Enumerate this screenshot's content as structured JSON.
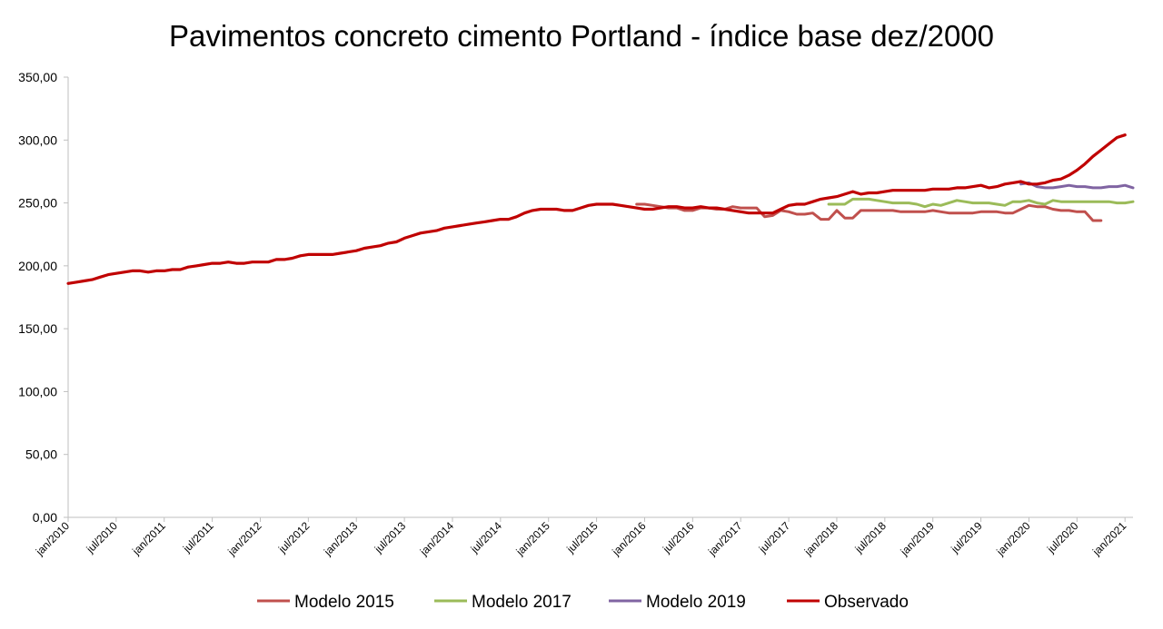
{
  "chart_data": {
    "type": "line",
    "title": "Pavimentos concreto cimento Portland - índice base dez/2000",
    "xlabel": "",
    "ylabel": "",
    "ylim": [
      0,
      350
    ],
    "yticks": [
      "0,00",
      "50,00",
      "100,00",
      "150,00",
      "200,00",
      "250,00",
      "300,00",
      "350,00"
    ],
    "x_tick_labels": [
      "jan/2010",
      "jul/2010",
      "jan/2011",
      "jul/2011",
      "jan/2012",
      "jul/2012",
      "jan/2013",
      "jul/2013",
      "jan/2014",
      "jul/2014",
      "jan/2015",
      "jul/2015",
      "jan/2016",
      "jul/2016",
      "jan/2017",
      "jul/2017",
      "jan/2018",
      "jul/2018",
      "jan/2019",
      "jul/2019",
      "jan/2020",
      "jul/2020",
      "jan/2021"
    ],
    "x_start": "jan/2010",
    "x_end": "fev/2021",
    "grid": false,
    "legend_position": "bottom",
    "series": [
      {
        "name": "Modelo 2015",
        "color": "#c0504d",
        "start": "dez/2015",
        "values": [
          249,
          249,
          248,
          247,
          246,
          246,
          244,
          244,
          246,
          246,
          245,
          245,
          247,
          246,
          246,
          246,
          239,
          240,
          244,
          243,
          241,
          241,
          242,
          237,
          237,
          244,
          238,
          238,
          244,
          244,
          244,
          244,
          244,
          243,
          243,
          243,
          243,
          244,
          243,
          242,
          242,
          242,
          242,
          243,
          243,
          243,
          242,
          242,
          245,
          248,
          247,
          247,
          245,
          244,
          244,
          243,
          243,
          236,
          236
        ]
      },
      {
        "name": "Modelo 2017",
        "color": "#9bbb59",
        "start": "dez/2017",
        "values": [
          249,
          249,
          249,
          253,
          253,
          253,
          252,
          251,
          250,
          250,
          250,
          249,
          247,
          249,
          248,
          250,
          252,
          251,
          250,
          250,
          250,
          249,
          248,
          251,
          251,
          252,
          250,
          249,
          252,
          251,
          251,
          251,
          251,
          251,
          251,
          251,
          250,
          250,
          251
        ]
      },
      {
        "name": "Modelo 2019",
        "color": "#8064a2",
        "start": "dez/2019",
        "values": [
          265,
          266,
          263,
          262,
          262,
          263,
          264,
          263,
          263,
          262,
          262,
          263,
          263,
          264,
          262
        ]
      },
      {
        "name": "Observado",
        "color": "#c00000",
        "start": "jan/2010",
        "values": [
          186,
          187,
          188,
          189,
          191,
          193,
          194,
          195,
          196,
          196,
          195,
          196,
          196,
          197,
          197,
          199,
          200,
          201,
          202,
          202,
          203,
          202,
          202,
          203,
          203,
          203,
          205,
          205,
          206,
          208,
          209,
          209,
          209,
          209,
          210,
          211,
          212,
          214,
          215,
          216,
          218,
          219,
          222,
          224,
          226,
          227,
          228,
          230,
          231,
          232,
          233,
          234,
          235,
          236,
          237,
          237,
          239,
          242,
          244,
          245,
          245,
          245,
          244,
          244,
          246,
          248,
          249,
          249,
          249,
          248,
          247,
          246,
          245,
          245,
          246,
          247,
          247,
          246,
          246,
          247,
          246,
          246,
          245,
          244,
          243,
          242,
          242,
          242,
          242,
          245,
          248,
          249,
          249,
          251,
          253,
          254,
          255,
          257,
          259,
          257,
          258,
          258,
          259,
          260,
          260,
          260,
          260,
          260,
          261,
          261,
          261,
          262,
          262,
          263,
          264,
          262,
          263,
          265,
          266,
          267,
          265,
          265,
          266,
          268,
          269,
          272,
          276,
          281,
          287,
          292,
          297,
          302,
          304
        ]
      }
    ]
  }
}
